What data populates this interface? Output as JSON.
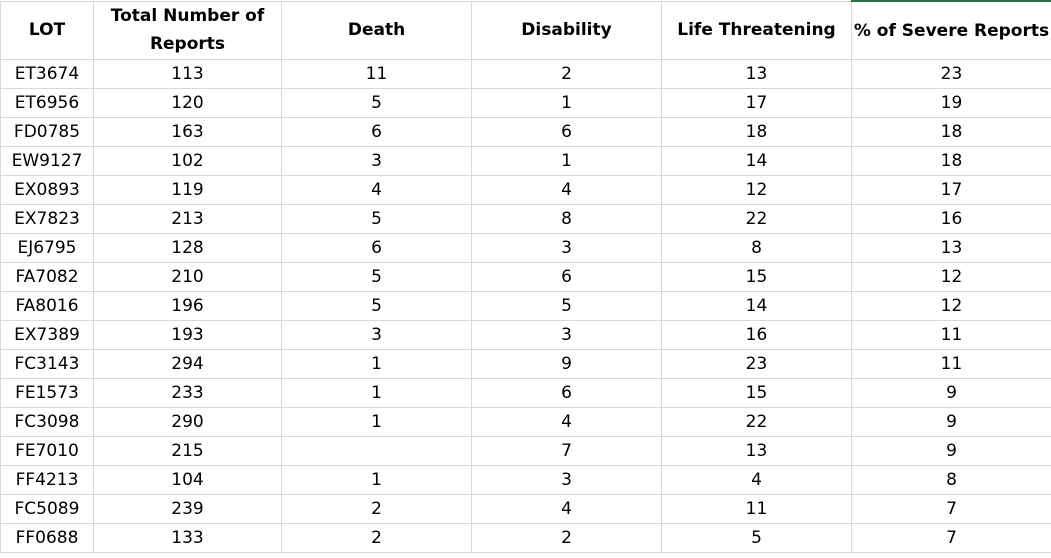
{
  "headers": {
    "lot": "LOT",
    "total": "Total Number of Reports",
    "death": "Death",
    "disability": "Disability",
    "life": "Life Threatening",
    "severe": "% of Severe Reports"
  },
  "rows": [
    {
      "lot": "ET3674",
      "total": "113",
      "death": "11",
      "disability": "2",
      "life": "13",
      "severe": "23"
    },
    {
      "lot": "ET6956",
      "total": "120",
      "death": "5",
      "disability": "1",
      "life": "17",
      "severe": "19"
    },
    {
      "lot": "FD0785",
      "total": "163",
      "death": "6",
      "disability": "6",
      "life": "18",
      "severe": "18"
    },
    {
      "lot": "EW9127",
      "total": "102",
      "death": "3",
      "disability": "1",
      "life": "14",
      "severe": "18"
    },
    {
      "lot": "EX0893",
      "total": "119",
      "death": "4",
      "disability": "4",
      "life": "12",
      "severe": "17"
    },
    {
      "lot": "EX7823",
      "total": "213",
      "death": "5",
      "disability": "8",
      "life": "22",
      "severe": "16"
    },
    {
      "lot": "EJ6795",
      "total": "128",
      "death": "6",
      "disability": "3",
      "life": "8",
      "severe": "13"
    },
    {
      "lot": "FA7082",
      "total": "210",
      "death": "5",
      "disability": "6",
      "life": "15",
      "severe": "12"
    },
    {
      "lot": "FA8016",
      "total": "196",
      "death": "5",
      "disability": "5",
      "life": "14",
      "severe": "12"
    },
    {
      "lot": "EX7389",
      "total": "193",
      "death": "3",
      "disability": "3",
      "life": "16",
      "severe": "11"
    },
    {
      "lot": "FC3143",
      "total": "294",
      "death": "1",
      "disability": "9",
      "life": "23",
      "severe": "11"
    },
    {
      "lot": "FE1573",
      "total": "233",
      "death": "1",
      "disability": "6",
      "life": "15",
      "severe": "9"
    },
    {
      "lot": "FC3098",
      "total": "290",
      "death": "1",
      "disability": "4",
      "life": "22",
      "severe": "9"
    },
    {
      "lot": "FE7010",
      "total": "215",
      "death": "",
      "disability": "7",
      "life": "13",
      "severe": "9"
    },
    {
      "lot": "FF4213",
      "total": "104",
      "death": "1",
      "disability": "3",
      "life": "4",
      "severe": "8"
    },
    {
      "lot": "FC5089",
      "total": "239",
      "death": "2",
      "disability": "4",
      "life": "11",
      "severe": "7"
    },
    {
      "lot": "FF0688",
      "total": "133",
      "death": "2",
      "disability": "2",
      "life": "5",
      "severe": "7"
    }
  ],
  "colors": {
    "gridline": "#d9d9d9",
    "active_cell_border": "#217346"
  }
}
